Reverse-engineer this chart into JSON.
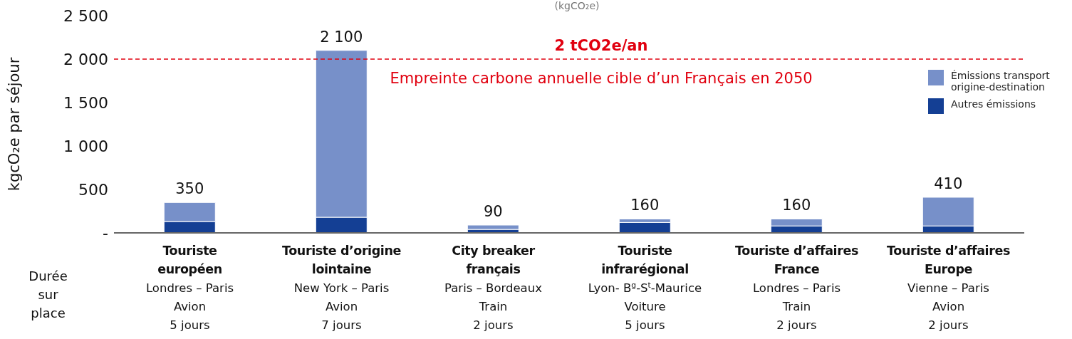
{
  "chart_data": {
    "type": "bar",
    "stacked": true,
    "title": "(kgCO₂e)",
    "ylabel": "kgcO₂e par séjour",
    "categories": [
      "Touriste\neuropéen\nLondres – Paris\nAvion\n5 jours",
      "Touriste d’origine\nlointaine\nNew York – Paris\nAvion\n7 jours",
      "City breaker\nfrançais\nParis – Bordeaux\nTrain\n2 jours",
      "Touriste\ninfrarégional\nLyon- B$^{g}$-S$^{t}$-Maurice\nVoiture\n5 jours",
      "Touriste d’affaires\nFrance\nLondres – Paris\nTrain\n2 jours",
      "Touriste d’affaires\nEurope\nVienne – Paris\nAvion\n2 jours"
    ],
    "series": [
      {
        "name": "Autres émissions",
        "color": "#143f94",
        "values": [
          130,
          180,
          40,
          120,
          80,
          80
        ]
      },
      {
        "name": "Émissions transport origine-destination",
        "color": "#7790c9",
        "values": [
          220,
          1920,
          50,
          40,
          80,
          330
        ]
      }
    ],
    "totals": [
      "350",
      "2 100",
      "90",
      "160",
      "160",
      "410"
    ],
    "ylim": [
      0,
      2500
    ],
    "yticks": [
      {
        "value": 0,
        "label": "-"
      },
      500,
      {
        "value": 1000,
        "label": "1 000"
      },
      {
        "value": 1500,
        "label": "1 500"
      },
      {
        "value": 2000,
        "label": "2 000"
      },
      {
        "value": 2500,
        "label": "2 500"
      }
    ],
    "ref_lines": [
      {
        "axis": "y",
        "value": 2000,
        "label": "2 tCO2e/an",
        "color": "#e1000f",
        "line_style": "dashed"
      }
    ],
    "annotations": [
      {
        "text": "Empreinte carbone annuelle cible d’un Français en 2050",
        "y": 2000
      },
      "Durée\nsur\nplace"
    ],
    "legend": "top right"
  }
}
